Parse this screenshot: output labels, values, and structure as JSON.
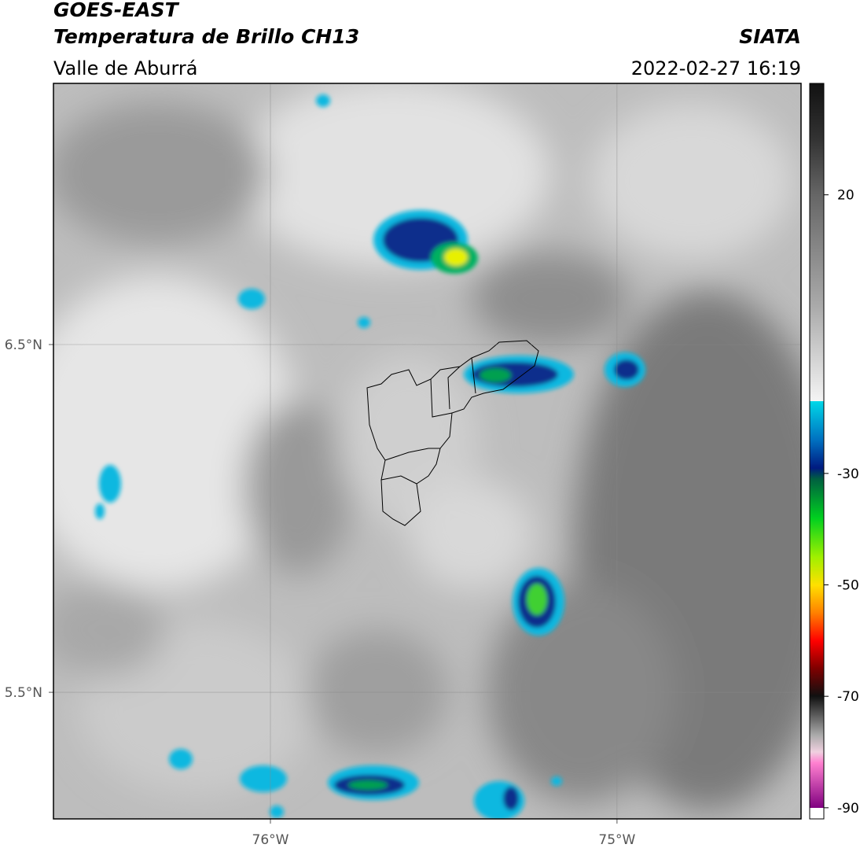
{
  "header": {
    "title": "GOES-EAST",
    "subtitle": "Temperatura de Brillo CH13",
    "region": "Valle de Aburrá",
    "source": "SIATA",
    "datetime": "2022-02-27 16:19"
  },
  "map": {
    "xlim": [
      -76.626,
      -74.469
    ],
    "ylim": [
      5.136,
      7.251
    ],
    "xticks": [
      {
        "value": -76,
        "label": "76°W"
      },
      {
        "value": -75,
        "label": "75°W"
      }
    ],
    "yticks": [
      {
        "value": 6.5,
        "label": "6.5°N"
      },
      {
        "value": 5.5,
        "label": "5.5°N"
      }
    ],
    "grid": true
  },
  "colorbar": {
    "clim": [
      -92,
      40
    ],
    "ticks": [
      20,
      -30,
      -50,
      -70,
      -90
    ]
  }
}
